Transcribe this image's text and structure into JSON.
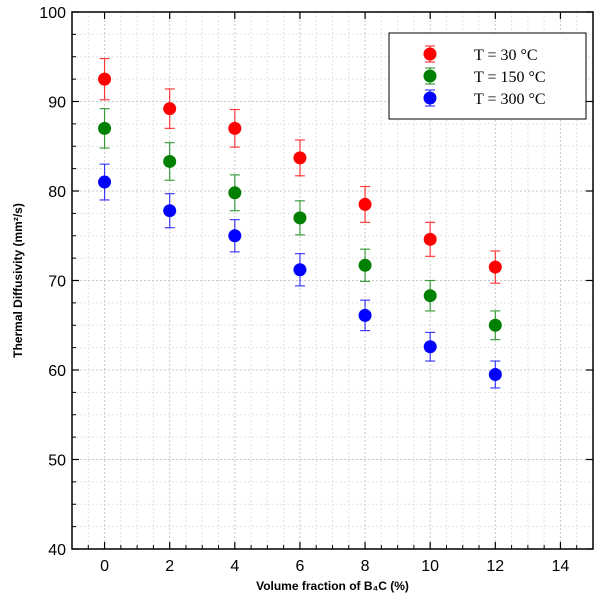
{
  "chart_data": {
    "type": "scatter",
    "title": "",
    "xlabel": "Volume fraction of B₄C (%)",
    "ylabel": "Thermal Diffusivity (mm²/s)",
    "xlim": [
      -1,
      15
    ],
    "ylim": [
      40,
      100
    ],
    "x_ticks": [
      0,
      2,
      4,
      6,
      8,
      10,
      12,
      14
    ],
    "y_ticks": [
      40,
      50,
      60,
      70,
      80,
      90,
      100
    ],
    "grid": true,
    "legend_position": "top-right",
    "series": [
      {
        "name": "T = 30 °C",
        "color": "#ff0000",
        "x": [
          0,
          2,
          4,
          6,
          8,
          10,
          12
        ],
        "y": [
          92.5,
          89.2,
          87.0,
          83.7,
          78.5,
          74.6,
          71.5
        ],
        "error": [
          2.3,
          2.2,
          2.1,
          2.0,
          2.0,
          1.9,
          1.8
        ]
      },
      {
        "name": "T = 150 °C",
        "color": "#008000",
        "x": [
          0,
          2,
          4,
          6,
          8,
          10,
          12
        ],
        "y": [
          87.0,
          83.3,
          79.8,
          77.0,
          71.7,
          68.3,
          65.0
        ],
        "error": [
          2.2,
          2.1,
          2.0,
          1.9,
          1.8,
          1.7,
          1.6
        ]
      },
      {
        "name": "T = 300 °C",
        "color": "#0000ff",
        "x": [
          0,
          2,
          4,
          6,
          8,
          10,
          12
        ],
        "y": [
          81.0,
          77.8,
          75.0,
          71.2,
          66.1,
          62.6,
          59.5
        ],
        "error": [
          2.0,
          1.9,
          1.8,
          1.8,
          1.7,
          1.6,
          1.5
        ]
      }
    ]
  }
}
